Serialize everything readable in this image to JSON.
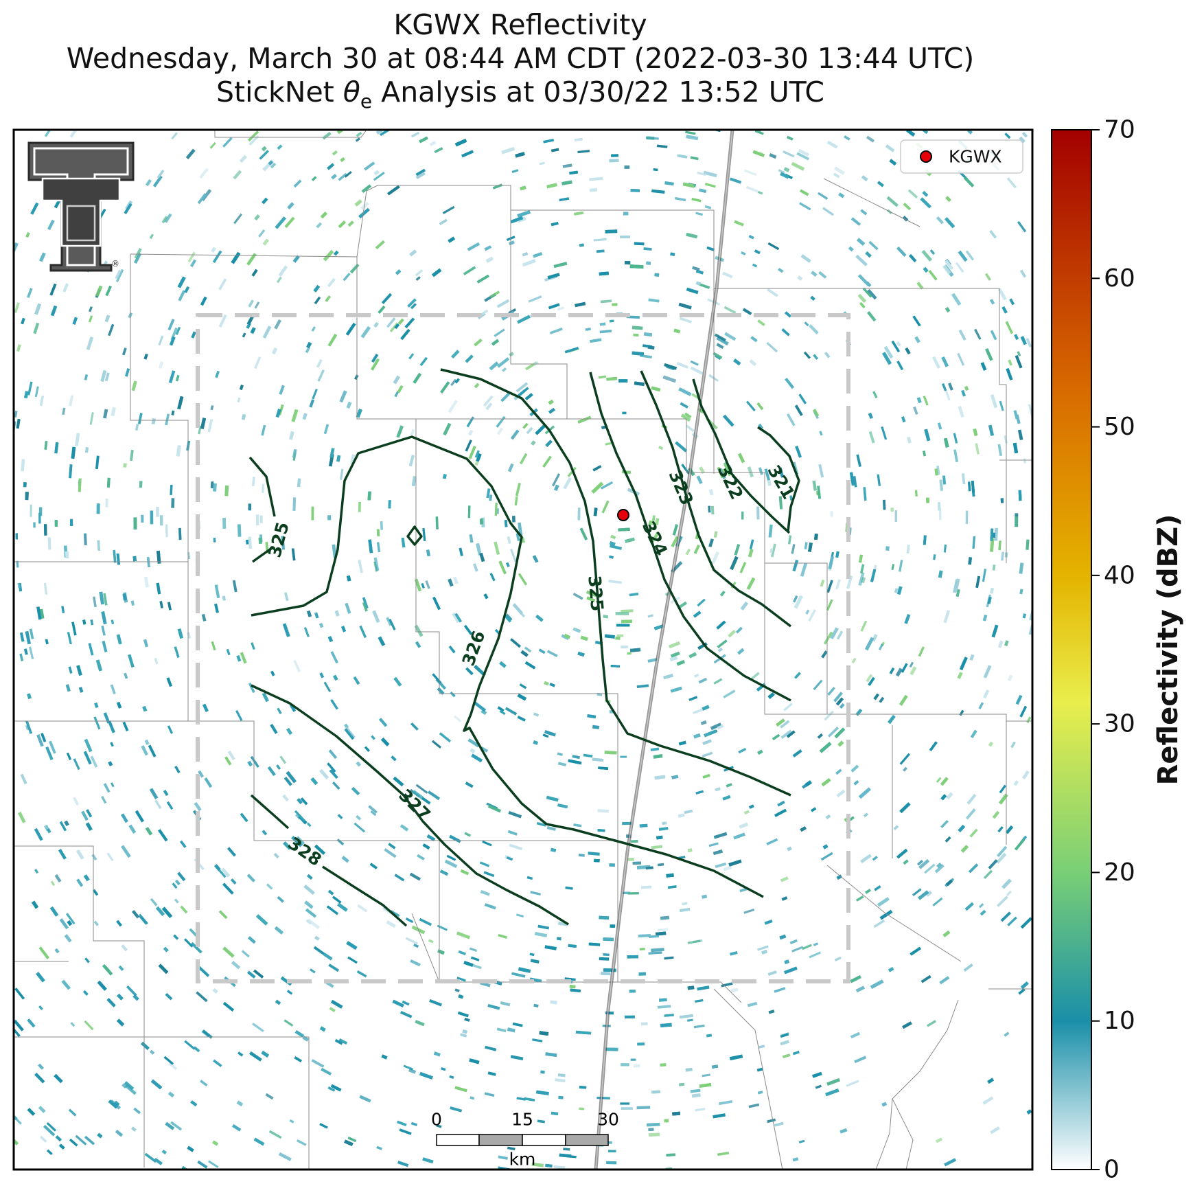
{
  "title": {
    "line1": "KGWX Reflectivity",
    "line2": "Wednesday, March 30 at 08:44 AM CDT (2022-03-30 13:44 UTC)",
    "line3_prefix": "StickNet ",
    "line3_symbol": "θ",
    "line3_subscript": "e",
    "line3_suffix": " Analysis at 03/30/22 13:52 UTC"
  },
  "legend": {
    "station_label": "KGWX",
    "station_color": "#e8000b"
  },
  "colorbar": {
    "label": "Reflectivity (dBZ)",
    "ticks": [
      "0",
      "10",
      "20",
      "30",
      "40",
      "50",
      "60",
      "70"
    ],
    "min": 0,
    "max": 70,
    "colors": [
      "#ffffff",
      "#1a8fa8",
      "#79cf76",
      "#e9ee4c",
      "#e4b400",
      "#d86a00",
      "#a30000"
    ]
  },
  "scalebar": {
    "ticks": [
      "0",
      "15",
      "30"
    ],
    "unit": "km"
  },
  "contours": {
    "color": "#0b3d1f",
    "labels": [
      "321",
      "322",
      "323",
      "324",
      "325",
      "325",
      "326",
      "327",
      "328"
    ]
  },
  "logo": {
    "name": "Texas Tech Double T",
    "mark": "®"
  }
}
